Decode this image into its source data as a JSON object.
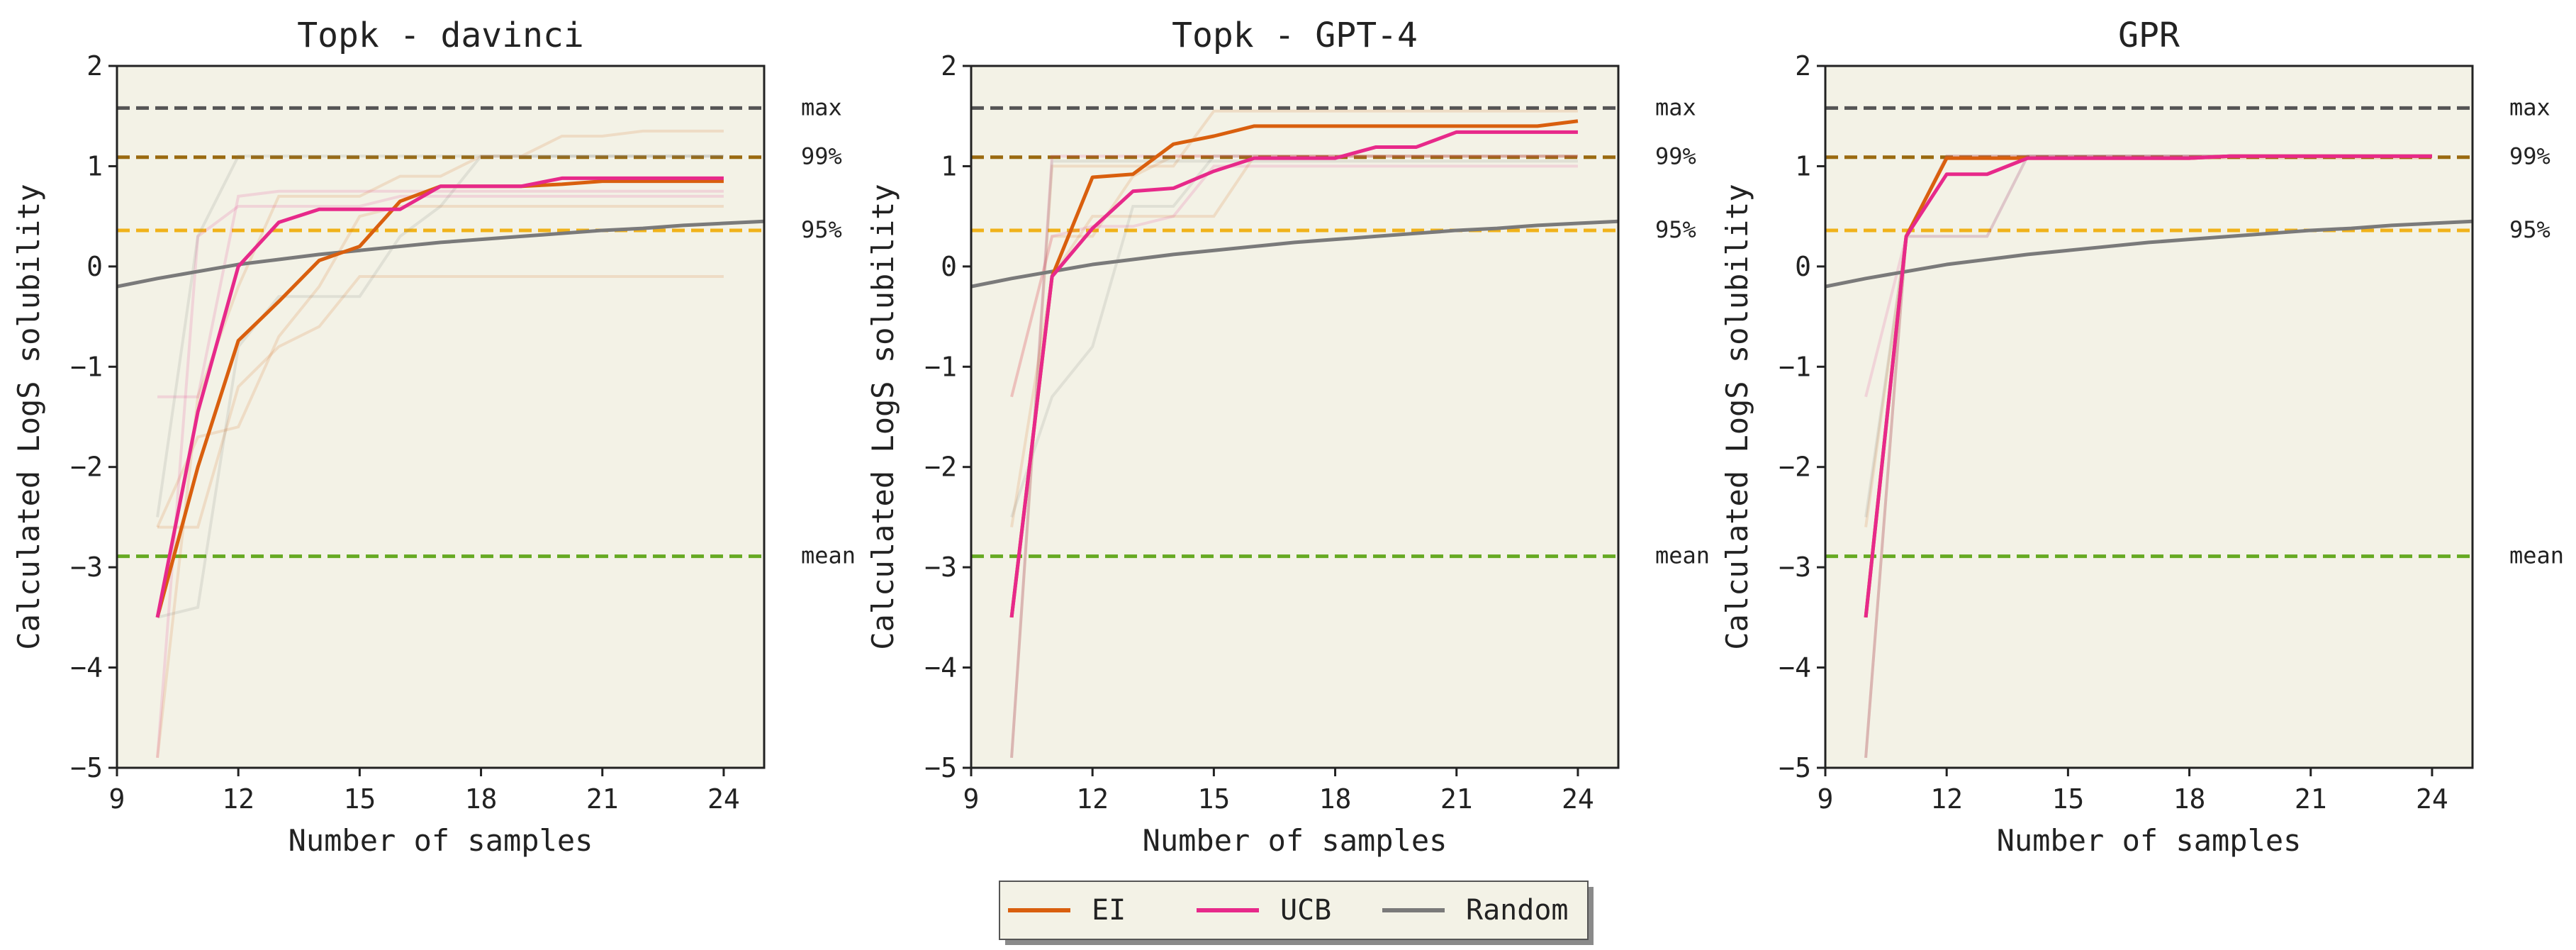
{
  "colors": {
    "background": "#f3f2e6",
    "axis": "#222222",
    "EI": "#d95f0e",
    "UCB": "#e7298a",
    "Random": "#7a7a7a",
    "max": "#555555",
    "p99": "#9a6a10",
    "p95": "#f0b21a",
    "mean": "#66aa22"
  },
  "chart_data": [
    {
      "type": "line",
      "title": "Topk - davinci",
      "xlabel": "Number of samples",
      "ylabel": "Calculated LogS solubility",
      "xlim": [
        9,
        25
      ],
      "ylim": [
        -5,
        2
      ],
      "xticks": [
        9,
        12,
        15,
        18,
        21,
        24
      ],
      "yticks": [
        -5,
        -4,
        -3,
        -2,
        -1,
        0,
        1,
        2
      ],
      "reference_lines": [
        {
          "label": "max",
          "y": 1.58
        },
        {
          "label": "99%",
          "y": 1.09
        },
        {
          "label": "95%",
          "y": 0.36
        },
        {
          "label": "mean",
          "y": -2.89
        }
      ],
      "series": [
        {
          "name": "EI",
          "x": [
            10,
            11,
            12,
            13,
            14,
            15,
            16,
            17,
            18,
            19,
            20,
            21,
            22,
            23,
            24
          ],
          "y": [
            -3.5,
            -2.0,
            -0.74,
            -0.35,
            0.06,
            0.2,
            0.65,
            0.8,
            0.8,
            0.8,
            0.82,
            0.85,
            0.85,
            0.85,
            0.85
          ]
        },
        {
          "name": "UCB",
          "x": [
            10,
            11,
            12,
            13,
            14,
            15,
            16,
            17,
            18,
            19,
            20,
            21,
            22,
            23,
            24
          ],
          "y": [
            -3.5,
            -1.45,
            0.0,
            0.44,
            0.57,
            0.57,
            0.57,
            0.8,
            0.8,
            0.8,
            0.88,
            0.88,
            0.88,
            0.88,
            0.88
          ]
        },
        {
          "name": "Random",
          "x": [
            9,
            10,
            11,
            12,
            13,
            14,
            15,
            16,
            17,
            18,
            19,
            20,
            21,
            22,
            23,
            24,
            25
          ],
          "y": [
            -0.2,
            -0.12,
            -0.05,
            0.02,
            0.07,
            0.12,
            0.16,
            0.2,
            0.24,
            0.27,
            0.3,
            0.33,
            0.36,
            0.38,
            0.41,
            0.43,
            0.45
          ]
        }
      ],
      "faint_runs": [
        {
          "color": "EI",
          "y": [
            -4.9,
            -1.3,
            -0.2,
            0.7,
            0.7,
            0.7,
            0.9,
            0.9,
            1.1,
            1.1,
            1.3,
            1.3,
            1.35,
            1.35,
            1.35
          ]
        },
        {
          "color": "EI",
          "y": [
            -2.6,
            -1.7,
            -1.6,
            -0.7,
            -0.2,
            0.5,
            0.6,
            0.6,
            0.6,
            0.6,
            0.6,
            0.6,
            0.6,
            0.6,
            0.6
          ]
        },
        {
          "color": "EI",
          "y": [
            -2.6,
            -2.6,
            -1.2,
            -0.8,
            -0.6,
            -0.1,
            -0.1,
            -0.1,
            -0.1,
            -0.1,
            -0.1,
            -0.1,
            -0.1,
            -0.1,
            -0.1
          ]
        },
        {
          "color": "UCB",
          "y": [
            -1.3,
            -1.3,
            0.7,
            0.75,
            0.75,
            0.75,
            0.75,
            0.75,
            0.75,
            0.75,
            0.75,
            0.75,
            0.75,
            0.75,
            0.75
          ]
        },
        {
          "color": "UCB",
          "y": [
            -4.9,
            0.3,
            0.6,
            0.6,
            0.6,
            0.6,
            0.7,
            0.7,
            0.7,
            0.7,
            0.7,
            0.7,
            0.7,
            0.7,
            0.7
          ]
        },
        {
          "color": "Random",
          "y": [
            -2.5,
            0.3,
            1.1,
            1.1,
            1.1,
            1.1,
            1.1,
            1.1,
            1.1,
            1.1,
            1.1,
            1.1,
            1.1,
            1.1,
            1.1
          ]
        },
        {
          "color": "Random",
          "y": [
            -3.5,
            -3.4,
            -0.8,
            -0.3,
            -0.3,
            -0.3,
            0.3,
            0.6,
            1.1,
            1.1,
            1.1,
            1.1,
            1.1,
            1.1,
            1.1
          ]
        }
      ]
    },
    {
      "type": "line",
      "title": "Topk - GPT-4",
      "xlabel": "Number of samples",
      "ylabel": "Calculated LogS solubility",
      "xlim": [
        9,
        25
      ],
      "ylim": [
        -5,
        2
      ],
      "xticks": [
        9,
        12,
        15,
        18,
        21,
        24
      ],
      "yticks": [
        -5,
        -4,
        -3,
        -2,
        -1,
        0,
        1,
        2
      ],
      "reference_lines": [
        {
          "label": "max",
          "y": 1.58
        },
        {
          "label": "99%",
          "y": 1.09
        },
        {
          "label": "95%",
          "y": 0.36
        },
        {
          "label": "mean",
          "y": -2.89
        }
      ],
      "series": [
        {
          "name": "EI",
          "x": [
            10,
            11,
            12,
            13,
            14,
            15,
            16,
            17,
            18,
            19,
            20,
            21,
            22,
            23,
            24
          ],
          "y": [
            -3.5,
            -0.1,
            0.89,
            0.92,
            1.22,
            1.3,
            1.4,
            1.4,
            1.4,
            1.4,
            1.4,
            1.4,
            1.4,
            1.4,
            1.45
          ]
        },
        {
          "name": "UCB",
          "x": [
            10,
            11,
            12,
            13,
            14,
            15,
            16,
            17,
            18,
            19,
            20,
            21,
            22,
            23,
            24
          ],
          "y": [
            -3.5,
            -0.1,
            0.38,
            0.75,
            0.78,
            0.95,
            1.08,
            1.08,
            1.08,
            1.19,
            1.19,
            1.34,
            1.34,
            1.34,
            1.34
          ]
        },
        {
          "name": "Random",
          "x": [
            9,
            10,
            11,
            12,
            13,
            14,
            15,
            16,
            17,
            18,
            19,
            20,
            21,
            22,
            23,
            24,
            25
          ],
          "y": [
            -0.2,
            -0.12,
            -0.05,
            0.02,
            0.07,
            0.12,
            0.16,
            0.2,
            0.24,
            0.27,
            0.3,
            0.33,
            0.36,
            0.38,
            0.41,
            0.43,
            0.45
          ]
        }
      ],
      "faint_runs": [
        {
          "color": "EI",
          "y": [
            -4.9,
            1.0,
            1.0,
            1.0,
            1.0,
            1.55,
            1.55,
            1.55,
            1.55,
            1.55,
            1.55,
            1.55,
            1.55,
            1.55,
            1.55
          ]
        },
        {
          "color": "EI",
          "y": [
            -1.3,
            0.3,
            0.3,
            0.9,
            1.1,
            1.1,
            1.1,
            1.1,
            1.1,
            1.1,
            1.1,
            1.1,
            1.1,
            1.1,
            1.1
          ]
        },
        {
          "color": "EI",
          "y": [
            -2.6,
            -0.1,
            0.5,
            0.5,
            0.5,
            0.5,
            1.1,
            1.1,
            1.1,
            1.1,
            1.1,
            1.1,
            1.1,
            1.1,
            1.1
          ]
        },
        {
          "color": "UCB",
          "y": [
            -1.3,
            0.3,
            0.4,
            0.4,
            0.5,
            1.0,
            1.0,
            1.0,
            1.0,
            1.0,
            1.0,
            1.0,
            1.0,
            1.0,
            1.0
          ]
        },
        {
          "color": "UCB",
          "y": [
            -4.9,
            1.1,
            1.1,
            1.1,
            1.1,
            1.1,
            1.1,
            1.1,
            1.1,
            1.1,
            1.1,
            1.1,
            1.1,
            1.1,
            1.1
          ]
        },
        {
          "color": "Random",
          "y": [
            -2.5,
            -1.3,
            -0.8,
            0.6,
            0.6,
            1.1,
            1.1,
            1.1,
            1.1,
            1.1,
            1.1,
            1.1,
            1.1,
            1.1,
            1.1
          ]
        },
        {
          "color": "Random",
          "y": [
            -4.9,
            1.05,
            1.05,
            1.05,
            1.05,
            1.05,
            1.05,
            1.05,
            1.05,
            1.05,
            1.05,
            1.05,
            1.05,
            1.05,
            1.05
          ]
        }
      ]
    },
    {
      "type": "line",
      "title": "GPR",
      "xlabel": "Number of samples",
      "ylabel": "Calculated LogS solubility",
      "xlim": [
        9,
        25
      ],
      "ylim": [
        -5,
        2
      ],
      "xticks": [
        9,
        12,
        15,
        18,
        21,
        24
      ],
      "yticks": [
        -5,
        -4,
        -3,
        -2,
        -1,
        0,
        1,
        2
      ],
      "reference_lines": [
        {
          "label": "max",
          "y": 1.58
        },
        {
          "label": "99%",
          "y": 1.09
        },
        {
          "label": "95%",
          "y": 0.36
        },
        {
          "label": "mean",
          "y": -2.89
        }
      ],
      "series": [
        {
          "name": "EI",
          "x": [
            10,
            11,
            12,
            13,
            14,
            15,
            16,
            17,
            18,
            19,
            20,
            21,
            22,
            23,
            24
          ],
          "y": [
            -3.5,
            0.3,
            1.08,
            1.08,
            1.08,
            1.08,
            1.08,
            1.08,
            1.08,
            1.1,
            1.1,
            1.1,
            1.1,
            1.1,
            1.1
          ]
        },
        {
          "name": "UCB",
          "x": [
            10,
            11,
            12,
            13,
            14,
            15,
            16,
            17,
            18,
            19,
            20,
            21,
            22,
            23,
            24
          ],
          "y": [
            -3.5,
            0.3,
            0.92,
            0.92,
            1.08,
            1.08,
            1.08,
            1.08,
            1.08,
            1.1,
            1.1,
            1.1,
            1.1,
            1.1,
            1.1
          ]
        },
        {
          "name": "Random",
          "x": [
            9,
            10,
            11,
            12,
            13,
            14,
            15,
            16,
            17,
            18,
            19,
            20,
            21,
            22,
            23,
            24,
            25
          ],
          "y": [
            -0.2,
            -0.12,
            -0.05,
            0.02,
            0.07,
            0.12,
            0.16,
            0.2,
            0.24,
            0.27,
            0.3,
            0.33,
            0.36,
            0.38,
            0.41,
            0.43,
            0.45
          ]
        }
      ],
      "faint_runs": [
        {
          "color": "EI",
          "y": [
            -4.9,
            0.3,
            1.08,
            1.08,
            1.08,
            1.08,
            1.08,
            1.08,
            1.08,
            1.08,
            1.08,
            1.08,
            1.08,
            1.08,
            1.08
          ]
        },
        {
          "color": "EI",
          "y": [
            -2.6,
            0.3,
            1.1,
            1.1,
            1.1,
            1.1,
            1.1,
            1.1,
            1.1,
            1.1,
            1.1,
            1.1,
            1.1,
            1.1,
            1.1
          ]
        },
        {
          "color": "UCB",
          "y": [
            -1.3,
            0.3,
            0.3,
            0.3,
            1.1,
            1.1,
            1.1,
            1.1,
            1.1,
            1.1,
            1.1,
            1.1,
            1.1,
            1.1,
            1.1
          ]
        },
        {
          "color": "UCB",
          "y": [
            -4.9,
            0.3,
            1.1,
            1.1,
            1.1,
            1.1,
            1.1,
            1.1,
            1.1,
            1.1,
            1.1,
            1.1,
            1.1,
            1.1,
            1.1
          ]
        },
        {
          "color": "Random",
          "y": [
            -2.5,
            0.3,
            0.3,
            0.3,
            1.1,
            1.1,
            1.1,
            1.1,
            1.1,
            1.1,
            1.1,
            1.1,
            1.1,
            1.1,
            1.1
          ]
        },
        {
          "color": "Random",
          "y": [
            -4.9,
            0.3,
            1.1,
            1.1,
            1.1,
            1.1,
            1.1,
            1.1,
            1.1,
            1.1,
            1.1,
            1.1,
            1.1,
            1.1,
            1.1
          ]
        }
      ]
    }
  ],
  "legend": {
    "placement": "bottom-center",
    "entries": [
      {
        "label": "EI",
        "color": "EI"
      },
      {
        "label": "UCB",
        "color": "UCB"
      },
      {
        "label": "Random",
        "color": "Random"
      }
    ]
  }
}
